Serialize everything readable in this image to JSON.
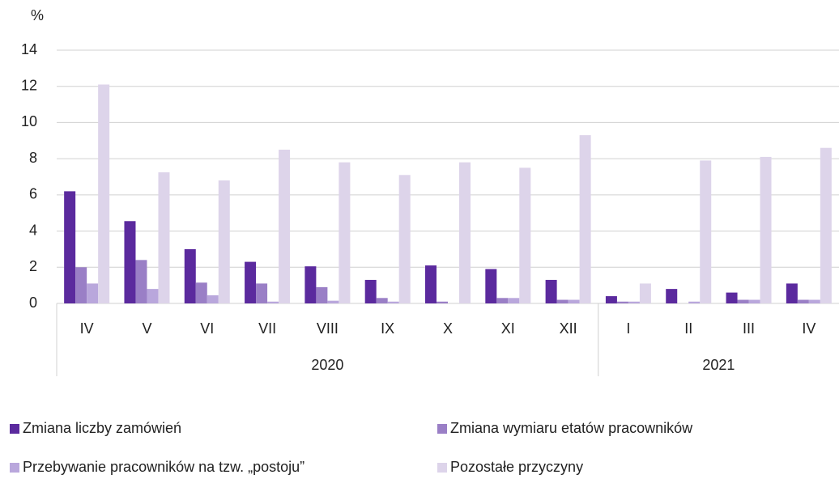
{
  "chart_data": {
    "type": "bar",
    "y_label": "%",
    "categories": [
      "IV",
      "V",
      "VI",
      "VII",
      "VIII",
      "IX",
      "X",
      "XI",
      "XII",
      "I",
      "II",
      "III",
      "IV"
    ],
    "groups": [
      {
        "label": "2020",
        "count": 9
      },
      {
        "label": "2021",
        "count": 4
      }
    ],
    "series": [
      {
        "name": "Zmiana liczby zamówień",
        "color": "#5b2a9e",
        "values": [
          6.2,
          4.55,
          3.0,
          2.3,
          2.05,
          1.3,
          2.1,
          1.9,
          1.3,
          0.4,
          0.8,
          0.6,
          1.1
        ]
      },
      {
        "name": "Zmiana wymiaru etatów pracowników",
        "color": "#9a7fc6",
        "values": [
          2.0,
          2.4,
          1.15,
          1.1,
          0.9,
          0.3,
          0.1,
          0.3,
          0.2,
          0.1,
          0,
          0.2,
          0.2
        ]
      },
      {
        "name": "Przebywanie pracowników na tzw. „postoju”",
        "color": "#b9a7dc",
        "values": [
          1.1,
          0.8,
          0.45,
          0.1,
          0.15,
          0.1,
          0,
          0.3,
          0.2,
          0.1,
          0.1,
          0.2,
          0.2
        ]
      },
      {
        "name": "Pozostałe przyczyny",
        "color": "#ddd4ea",
        "values": [
          12.1,
          7.25,
          6.8,
          8.5,
          7.8,
          7.1,
          7.8,
          7.5,
          9.3,
          1.1,
          7.9,
          8.1,
          8.6
        ]
      }
    ],
    "ylim": [
      0,
      14
    ],
    "yticks": [
      0,
      2,
      4,
      6,
      8,
      10,
      12,
      14
    ],
    "grid": true
  }
}
